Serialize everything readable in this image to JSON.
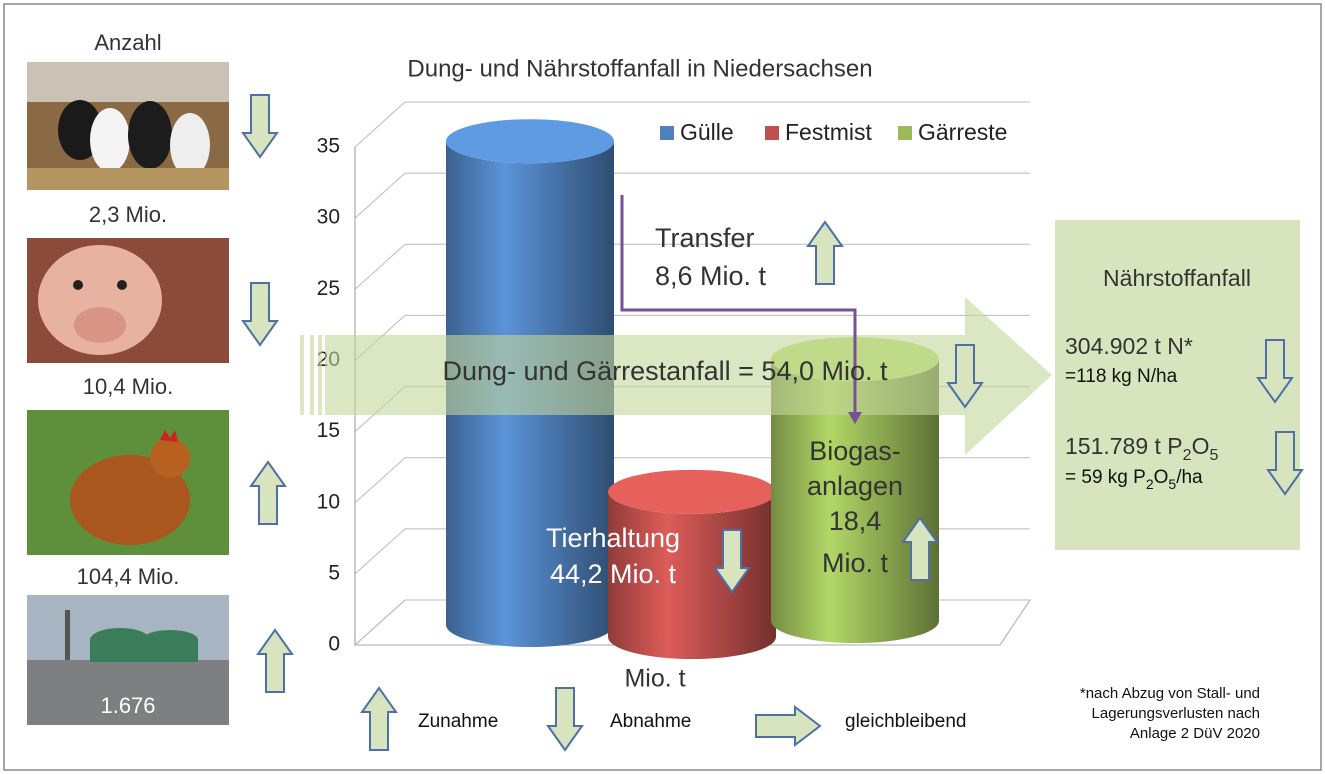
{
  "chart_data": {
    "type": "bar",
    "title": "Dung- und Nährstoffanfall in Niedersachsen",
    "x_label": "Mio. t",
    "categories": [
      null
    ],
    "series": [
      {
        "name": "Gülle",
        "color": "#4f81bd",
        "values": [
          34
        ]
      },
      {
        "name": "Festmist",
        "color": "#c0504d",
        "values": [
          10.2
        ]
      },
      {
        "name": "Gärreste",
        "color": "#9bbb59",
        "values": [
          18.4
        ]
      }
    ],
    "ylim": [
      0,
      35
    ],
    "yticks": [
      0,
      5,
      10,
      15,
      20,
      25,
      30,
      35
    ],
    "grid": true,
    "legend": "top-right",
    "annotations": [
      "Transfer",
      "8,6 Mio. t",
      "Dung- und Gärrestanfall = 54,0 Mio. t",
      "Tierhaltung",
      "44,2 Mio. t",
      "Biogas-",
      "anlagen",
      "18,4",
      "Mio. t"
    ]
  },
  "animals": {
    "title": "Anzahl",
    "counts": [
      "2,3 Mio.",
      "10,4 Mio.",
      "104,4 Mio.",
      "1.676"
    ]
  },
  "nutrients": {
    "title": "Nährstoffanfall",
    "n_line1": "304.902 t N*",
    "n_line2": "=118 kg N/ha",
    "p_line1": [
      "151.789 t P",
      "2",
      "O",
      "5"
    ],
    "p_line2": [
      "= 59 kg P",
      "2",
      "O",
      "5",
      "/ha"
    ]
  },
  "legend_arrows": [
    "Zunahme",
    "Abnahme",
    "gleichbleibend"
  ],
  "footnote": [
    "*nach Abzug von Stall- und",
    "Lagerungsverlusten nach",
    "Anlage 2 DüV 2020"
  ]
}
